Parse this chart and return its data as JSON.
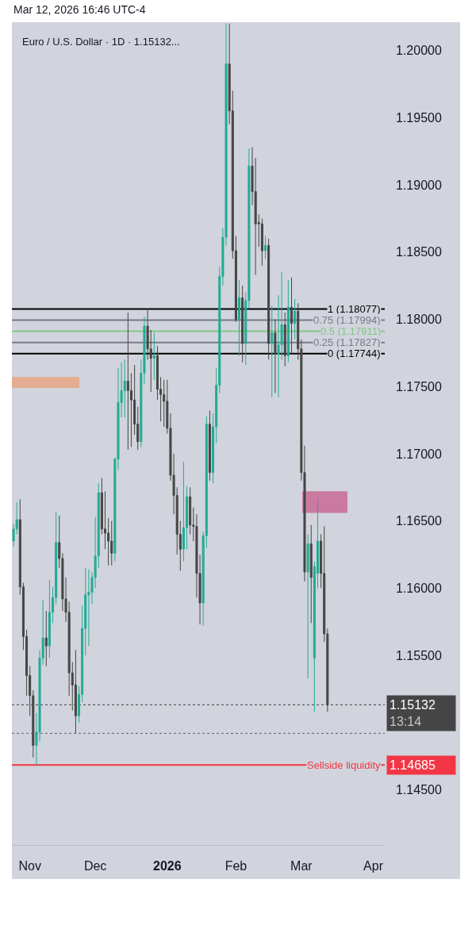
{
  "chart_data": {
    "type": "candlestick",
    "title": "Euro / U.S. Dollar · 1D · 1.15132...",
    "annotations": [
      "Mar 12, 2026 16:46 UTC-4",
      "1.15132\n13:14",
      "1.14685"
    ],
    "categories": [
      null,
      null,
      null,
      null,
      null,
      "Nov",
      null,
      null,
      null,
      null,
      null,
      null,
      null,
      null,
      null,
      null,
      null,
      null,
      null,
      null,
      null,
      null,
      null,
      null,
      null,
      "Dec",
      null,
      null,
      null,
      null,
      null,
      null,
      null,
      null,
      null,
      null,
      null,
      null,
      null,
      null,
      null,
      null,
      null,
      null,
      null,
      null,
      null,
      "2026",
      null,
      null,
      null,
      null,
      null,
      null,
      null,
      null,
      null,
      null,
      null,
      null,
      null,
      null,
      null,
      null,
      null,
      null,
      null,
      null,
      "Feb",
      null,
      null,
      null,
      null,
      null,
      null,
      null,
      null,
      null,
      null,
      null,
      null,
      null,
      null,
      null,
      null,
      null,
      null,
      null,
      "Mar",
      null,
      null,
      null,
      null,
      null,
      null,
      null,
      null,
      null,
      null,
      null,
      null,
      null,
      null,
      null,
      null,
      null,
      null,
      null,
      null,
      null,
      "Apr",
      null,
      null,
      null
    ],
    "ohlc": [
      [
        1.1635,
        1.1648,
        1.1631,
        1.1644
      ],
      [
        1.1644,
        1.1664,
        1.164,
        1.1651
      ],
      [
        1.1651,
        1.1666,
        1.1595,
        1.1601
      ],
      [
        1.1601,
        1.1604,
        1.1554,
        1.1564
      ],
      [
        1.1564,
        1.1569,
        1.152,
        1.1535
      ],
      [
        1.1535,
        1.1542,
        1.1505,
        1.152
      ],
      [
        1.152,
        1.1524,
        1.1474,
        1.1483
      ],
      [
        1.1483,
        1.1507,
        1.14685,
        1.1493
      ],
      [
        1.1493,
        1.1554,
        1.1486,
        1.1548
      ],
      [
        1.1548,
        1.1591,
        1.1543,
        1.1563
      ],
      [
        1.1563,
        1.1583,
        1.1542,
        1.1557
      ],
      [
        1.1557,
        1.1606,
        1.1548,
        1.1582
      ],
      [
        1.1582,
        1.1601,
        1.1574,
        1.1593
      ],
      [
        1.1593,
        1.1657,
        1.1588,
        1.1634
      ],
      [
        1.1634,
        1.1654,
        1.1615,
        1.1622
      ],
      [
        1.1622,
        1.1626,
        1.1583,
        1.1592
      ],
      [
        1.1592,
        1.1608,
        1.1575,
        1.1582
      ],
      [
        1.1582,
        1.159,
        1.152,
        1.1537
      ],
      [
        1.1537,
        1.1545,
        1.1509,
        1.1528
      ],
      [
        1.1528,
        1.1554,
        1.1492,
        1.1505
      ],
      [
        1.1505,
        1.1527,
        1.15,
        1.1521
      ],
      [
        1.1521,
        1.1587,
        1.1515,
        1.157
      ],
      [
        1.157,
        1.1615,
        1.155,
        1.1595
      ],
      [
        1.1595,
        1.1614,
        1.1557,
        1.1597
      ],
      [
        1.1597,
        1.1612,
        1.1588,
        1.1608
      ],
      [
        1.1608,
        1.1653,
        1.16,
        1.1624
      ],
      [
        1.1624,
        1.1678,
        1.1615,
        1.1671
      ],
      [
        1.1671,
        1.1682,
        1.164,
        1.1644
      ],
      [
        1.1644,
        1.1672,
        1.1629,
        1.1641
      ],
      [
        1.1641,
        1.1652,
        1.1617,
        1.1635
      ],
      [
        1.1635,
        1.165,
        1.1617,
        1.1626
      ],
      [
        1.1626,
        1.1697,
        1.162,
        1.1696
      ],
      [
        1.1696,
        1.1764,
        1.1688,
        1.1738
      ],
      [
        1.1738,
        1.1768,
        1.1727,
        1.1747
      ],
      [
        1.1747,
        1.177,
        1.1727,
        1.1754
      ],
      [
        1.1754,
        1.1805,
        1.1703,
        1.1747
      ],
      [
        1.1747,
        1.176,
        1.1705,
        1.174
      ],
      [
        1.174,
        1.1766,
        1.1714,
        1.1722
      ],
      [
        1.1722,
        1.1735,
        1.1703,
        1.1709
      ],
      [
        1.1709,
        1.177,
        1.1705,
        1.176
      ],
      [
        1.176,
        1.1802,
        1.1752,
        1.1795
      ],
      [
        1.1795,
        1.1808,
        1.177,
        1.1778
      ],
      [
        1.1778,
        1.1792,
        1.1746,
        1.1771
      ],
      [
        1.1771,
        1.179,
        1.1755,
        1.1773
      ],
      [
        1.1773,
        1.178,
        1.174,
        1.1748
      ],
      [
        1.1748,
        1.1757,
        1.1724,
        1.1744
      ],
      [
        1.1744,
        1.1755,
        1.172,
        1.1739
      ],
      [
        1.1739,
        1.1755,
        1.1715,
        1.1719
      ],
      [
        1.1719,
        1.173,
        1.168,
        1.1684
      ],
      [
        1.1684,
        1.17,
        1.1655,
        1.1669
      ],
      [
        1.1669,
        1.1675,
        1.1625,
        1.164
      ],
      [
        1.164,
        1.165,
        1.1613,
        1.1629
      ],
      [
        1.1629,
        1.1694,
        1.162,
        1.1645
      ],
      [
        1.1645,
        1.1676,
        1.1629,
        1.1668
      ],
      [
        1.1668,
        1.1675,
        1.164,
        1.1647
      ],
      [
        1.1647,
        1.166,
        1.1635,
        1.1646
      ],
      [
        1.1646,
        1.1655,
        1.1593,
        1.1611
      ],
      [
        1.1611,
        1.1625,
        1.1573,
        1.1589
      ],
      [
        1.1589,
        1.1642,
        1.1572,
        1.1639
      ],
      [
        1.1639,
        1.1728,
        1.163,
        1.1722
      ],
      [
        1.1722,
        1.1732,
        1.168,
        1.1686
      ],
      [
        1.1686,
        1.173,
        1.1678,
        1.172
      ],
      [
        1.172,
        1.1764,
        1.1708,
        1.1751
      ],
      [
        1.1751,
        1.1839,
        1.1745,
        1.1832
      ],
      [
        1.1832,
        1.1868,
        1.1825,
        1.1861
      ],
      [
        1.1861,
        1.202,
        1.1855,
        1.199
      ],
      [
        1.199,
        1.202,
        1.1945,
        1.1955
      ],
      [
        1.1955,
        1.197,
        1.1845,
        1.1851
      ],
      [
        1.1851,
        1.1862,
        1.1798,
        1.18
      ],
      [
        1.18,
        1.1829,
        1.1773,
        1.1816
      ],
      [
        1.1816,
        1.1825,
        1.1768,
        1.1782
      ],
      [
        1.1782,
        1.182,
        1.1766,
        1.1814
      ],
      [
        1.1814,
        1.1927,
        1.1808,
        1.1914
      ],
      [
        1.1914,
        1.1928,
        1.1885,
        1.1895
      ],
      [
        1.1895,
        1.192,
        1.1833,
        1.1871
      ],
      [
        1.1872,
        1.1878,
        1.1854,
        1.1871
      ],
      [
        1.1871,
        1.1875,
        1.184,
        1.1851
      ],
      [
        1.1851,
        1.1862,
        1.1845,
        1.1855
      ],
      [
        1.1855,
        1.186,
        1.177,
        1.1782
      ],
      [
        1.1782,
        1.181,
        1.1742,
        1.179
      ],
      [
        1.179,
        1.18,
        1.1745,
        1.1774
      ],
      [
        1.1774,
        1.1818,
        1.1742,
        1.1781
      ],
      [
        1.1781,
        1.1835,
        1.177,
        1.1796
      ],
      [
        1.1796,
        1.1805,
        1.1765,
        1.1773
      ],
      [
        1.1773,
        1.1829,
        1.1768,
        1.1809
      ],
      [
        1.1809,
        1.1831,
        1.1775,
        1.1797
      ],
      [
        1.1797,
        1.1815,
        1.1785,
        1.1806
      ],
      [
        1.1806,
        1.1812,
        1.177,
        1.1778
      ],
      [
        1.1778,
        1.1785,
        1.168,
        1.1686
      ],
      [
        1.1686,
        1.1706,
        1.1605,
        1.1612
      ],
      [
        1.1612,
        1.164,
        1.1533,
        1.1633
      ],
      [
        1.1633,
        1.1647,
        1.1574,
        1.1608
      ],
      [
        1.1548,
        1.162,
        1.1508,
        1.1616
      ],
      [
        1.1611,
        1.1667,
        1.16,
        1.1635
      ],
      [
        1.1635,
        1.164,
        1.16,
        1.1611
      ],
      [
        1.1611,
        1.1646,
        1.156,
        1.1566
      ],
      [
        1.1566,
        1.157,
        1.1508,
        1.15132
      ],
      null,
      null,
      null,
      null,
      null,
      null,
      null,
      null,
      null,
      null,
      null,
      null,
      null,
      null,
      null,
      null,
      null
    ],
    "colors": [
      "#22ab94",
      "#22ab94",
      "#454545",
      "#454545",
      "#454545",
      "#454545",
      "#454545",
      "#22ab94",
      "#22ab94",
      "#22ab94",
      "#454545",
      "#22ab94",
      "#22ab94",
      "#22ab94",
      "#454545",
      "#454545",
      "#454545",
      "#454545",
      "#454545",
      "#454545",
      "#22ab94",
      "#22ab94",
      "#22ab94",
      "#22ab94",
      "#22ab94",
      "#22ab94",
      "#22ab94",
      "#454545",
      "#454545",
      "#454545",
      "#454545",
      "#22ab94",
      "#22ab94",
      "#22ab94",
      "#22ab94",
      "#454545",
      "#454545",
      "#454545",
      "#454545",
      "#22ab94",
      "#22ab94",
      "#454545",
      "#454545",
      "#22ab94",
      "#454545",
      "#454545",
      "#454545",
      "#454545",
      "#454545",
      "#454545",
      "#454545",
      "#454545",
      "#22ab94",
      "#22ab94",
      "#454545",
      "#454545",
      "#454545",
      "#454545",
      "#22ab94",
      "#22ab94",
      "#454545",
      "#22ab94",
      "#22ab94",
      "#22ab94",
      "#22ab94",
      "#22ab94",
      "#454545",
      "#454545",
      "#454545",
      "#22ab94",
      "#454545",
      "#22ab94",
      "#22ab94",
      "#454545",
      "#454545",
      "#454545",
      "#454545",
      "#22ab94",
      "#454545",
      "#22ab94",
      "#454545",
      "#22ab94",
      "#22ab94",
      "#454545",
      "#22ab94",
      "#454545",
      "#22ab94",
      "#454545",
      "#454545",
      "#454545",
      "#22ab94",
      "#454545",
      "#22ab94",
      "#22ab94",
      "#454545",
      "#454545",
      "#454545",
      null,
      null,
      null,
      null,
      null,
      null,
      null,
      null,
      null,
      null,
      null,
      null,
      null,
      null,
      null,
      null,
      null
    ],
    "ylim": [
      1.1409,
      1.2021
    ],
    "yticks": [
      {
        "value": 1.145,
        "label": "1.14500"
      },
      {
        "value": 1.155,
        "label": "1.15500"
      },
      {
        "value": 1.16,
        "label": "1.16000"
      },
      {
        "value": 1.165,
        "label": "1.16500"
      },
      {
        "value": 1.17,
        "label": "1.17000"
      },
      {
        "value": 1.175,
        "label": "1.17500"
      },
      {
        "value": 1.18,
        "label": "1.18000"
      },
      {
        "value": 1.185,
        "label": "1.18500"
      },
      {
        "value": 1.19,
        "label": "1.19000"
      },
      {
        "value": 1.195,
        "label": "1.19500"
      },
      {
        "value": 1.2,
        "label": "1.20000"
      }
    ],
    "ref_lines": [
      {
        "axis": "y",
        "value": 1.18077,
        "label": "1 (1.18077)",
        "color": "#000000"
      },
      {
        "axis": "y",
        "value": 1.17994,
        "label": "0.75 (1.17994)",
        "color": "#787b86"
      },
      {
        "axis": "y",
        "value": 1.17911,
        "label": "0.5 (1.17911)",
        "color": "#81c784"
      },
      {
        "axis": "y",
        "value": 1.17827,
        "label": "0.25 (1.17827)",
        "color": "#787b86"
      },
      {
        "axis": "y",
        "value": 1.17744,
        "label": "0 (1.17744)",
        "color": "#000000"
      },
      {
        "axis": "y",
        "value": 1.14685,
        "label": "Sellside liquidity",
        "color": "#f23645"
      },
      {
        "axis": "y",
        "value": 1.15132,
        "color": "#454545",
        "line_style": "dotted"
      },
      {
        "axis": "y",
        "value": 1.1492,
        "color": "#5d606b",
        "line_style": "dotted"
      }
    ],
    "bands": [
      {
        "axis": "y",
        "from": 1.1749,
        "to": 1.1757,
        "color": "#e8a582"
      },
      {
        "axis": "y",
        "from": 1.1656,
        "to": 1.1672,
        "color": "#c96a95"
      }
    ]
  }
}
